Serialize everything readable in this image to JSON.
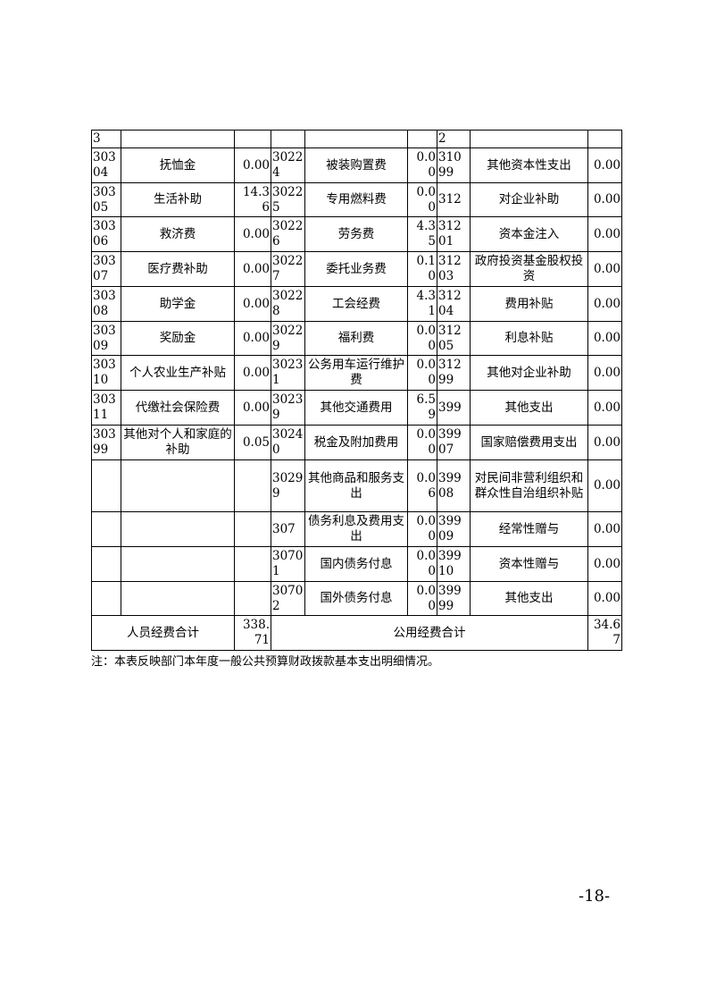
{
  "table": {
    "rows": [
      [
        "3",
        null,
        null,
        null,
        null,
        null,
        "2",
        null,
        null
      ],
      [
        "30304",
        "抚恤金",
        "0.00",
        "30224",
        "被装购置费",
        "0.00",
        "31099",
        "其他资本性支出",
        "0.00"
      ],
      [
        "30305",
        "生活补助",
        "14.36",
        "30225",
        "专用燃料费",
        "0.00",
        "312",
        "对企业补助",
        "0.00"
      ],
      [
        "30306",
        "救济费",
        "0.00",
        "30226",
        "劳务费",
        "4.35",
        "31201",
        "资本金注入",
        "0.00"
      ],
      [
        "30307",
        "医疗费补助",
        "0.00",
        "30227",
        "委托业务费",
        "0.10",
        "31203",
        "政府投资基金股权投资",
        "0.00"
      ],
      [
        "30308",
        "助学金",
        "0.00",
        "30228",
        "工会经费",
        "4.31",
        "31204",
        "费用补贴",
        "0.00"
      ],
      [
        "30309",
        "奖励金",
        "0.00",
        "30229",
        "福利费",
        "0.00",
        "31205",
        "利息补贴",
        "0.00"
      ],
      [
        "30310",
        "个人农业生产补贴",
        "0.00",
        "30231",
        "公务用车运行维护费",
        "0.00",
        "31299",
        "其他对企业补助",
        "0.00"
      ],
      [
        "30311",
        "代缴社会保险费",
        "0.00",
        "30239",
        "其他交通费用",
        "6.59",
        "399",
        "其他支出",
        "0.00"
      ],
      [
        "30399",
        "其他对个人和家庭的补助",
        "0.05",
        "30240",
        "税金及附加费用",
        "0.00",
        "39907",
        "国家赔偿费用支出",
        "0.00"
      ],
      [
        null,
        null,
        null,
        "30299",
        "其他商品和服务支出",
        "0.06",
        "39908",
        "对民间非营利组织和群众性自治组织补贴",
        "0.00"
      ],
      [
        null,
        null,
        null,
        "307",
        "债务利息及费用支出",
        "0.00",
        "39909",
        "经常性赠与",
        "0.00"
      ],
      [
        null,
        null,
        null,
        "30701",
        "国内债务付息",
        "0.00",
        "39910",
        "资本性赠与",
        "0.00"
      ],
      [
        null,
        null,
        null,
        "30702",
        "国外债务付息",
        "0.00",
        "39999",
        "其他支出",
        "0.00"
      ]
    ],
    "total": {
      "personnel_label": "人员经费合计",
      "personnel_amount": "338.71",
      "public_label": "公用经费合计",
      "public_amount": "34.67"
    }
  },
  "note": "注：本表反映部门本年度一般公共预算财政拨款基本支出明细情况。",
  "page_number": "-18-"
}
